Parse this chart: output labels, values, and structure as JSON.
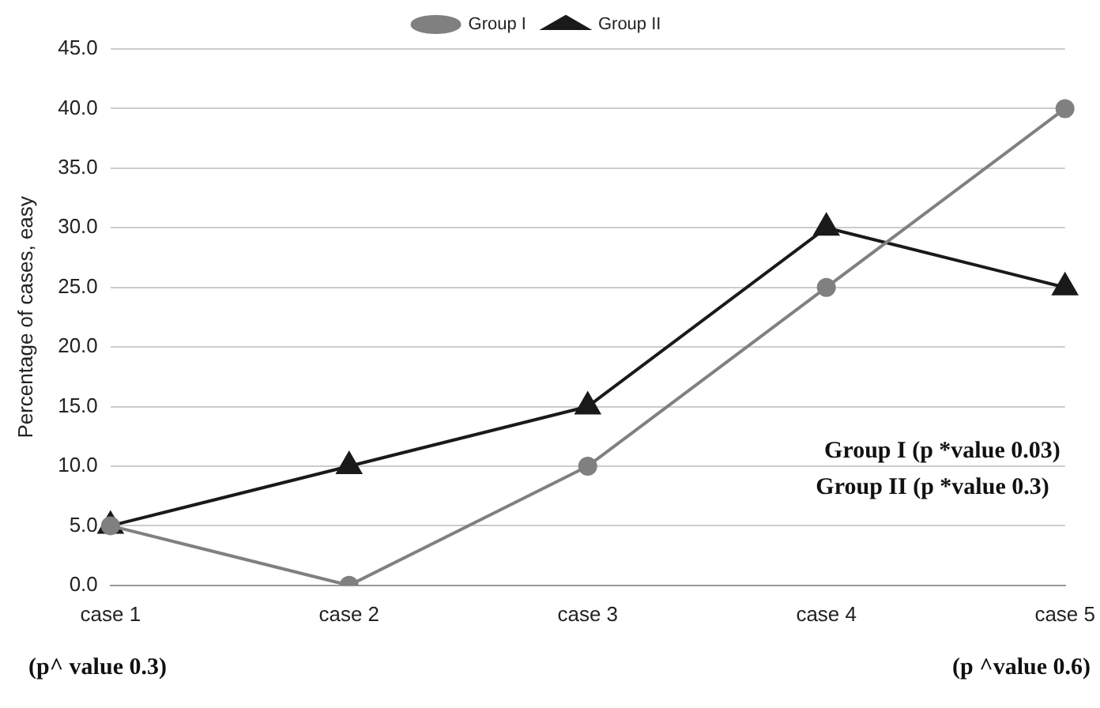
{
  "chart_data": {
    "type": "line",
    "ylabel": "Percentage of cases, easy",
    "categories": [
      "case 1",
      "case 2",
      "case 3",
      "case 4",
      "case 5"
    ],
    "series": [
      {
        "name": "Group I",
        "color": "#808080",
        "marker": "circle",
        "values": [
          5,
          0,
          10,
          25,
          40
        ]
      },
      {
        "name": "Group II",
        "color": "#1a1a1a",
        "marker": "triangle",
        "values": [
          5,
          10,
          15,
          30,
          25
        ]
      }
    ],
    "ylim": [
      0,
      45
    ],
    "yticks": [
      {
        "value": 0,
        "label": "0.0"
      },
      {
        "value": 5,
        "label": "5.0"
      },
      {
        "value": 10,
        "label": "10.0"
      },
      {
        "value": 15,
        "label": "15.0"
      },
      {
        "value": 20,
        "label": "20.0"
      },
      {
        "value": 25,
        "label": "25.0"
      },
      {
        "value": 30,
        "label": "30.0"
      },
      {
        "value": 35,
        "label": "35.0"
      },
      {
        "value": 40,
        "label": "40.0"
      },
      {
        "value": 45,
        "label": "45.0"
      }
    ],
    "grid": "y",
    "legend": "top",
    "line_style": "solid",
    "annotations": [
      "Group I (p *value 0.03)",
      "Group II (p *value 0.3)",
      "(p^ value 0.3)",
      "(p ^value 0.6)"
    ]
  }
}
